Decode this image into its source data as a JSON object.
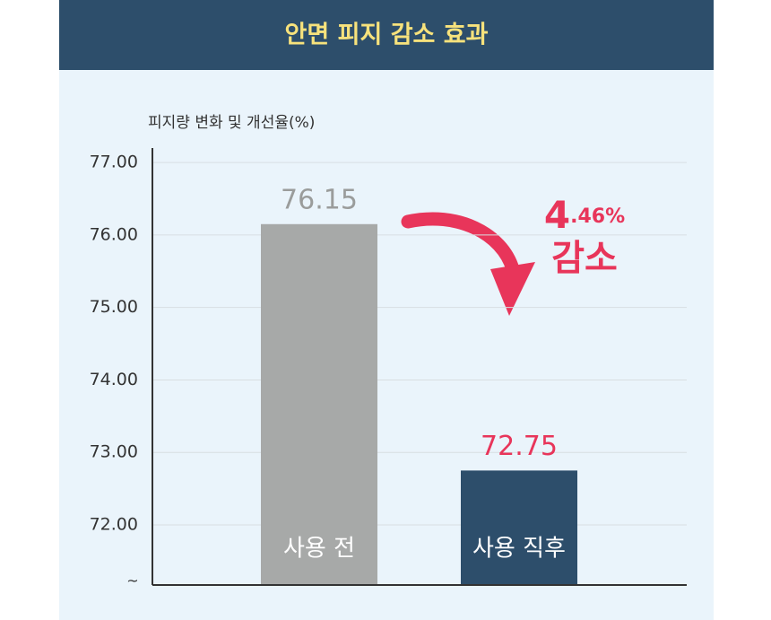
{
  "chart_data": {
    "type": "bar",
    "title": "안면 피지 감소 효과",
    "y_axis_label": "피지량 변화 및 개선율(%)",
    "categories": [
      "사용 전",
      "사용 직후"
    ],
    "values": [
      76.15,
      72.75
    ],
    "colors": [
      "#a7a9a8",
      "#2d4e6b"
    ],
    "value_label_colors": [
      "#9a9c9b",
      "#e8355a"
    ],
    "ylim": [
      71.17,
      77.2
    ],
    "yticks": [
      {
        "value": 72,
        "label": "72.00"
      },
      {
        "value": 73,
        "label": "73.00"
      },
      {
        "value": 74,
        "label": "74.00"
      },
      {
        "value": 75,
        "label": "75.00"
      },
      {
        "value": 76,
        "label": "76.00"
      },
      {
        "value": 77,
        "label": "77.00"
      }
    ],
    "axis_break_label": "~",
    "grid": true,
    "annotation": {
      "value": 4.46,
      "label": "4.46%",
      "text": "감소",
      "color": "#e8355a"
    }
  }
}
